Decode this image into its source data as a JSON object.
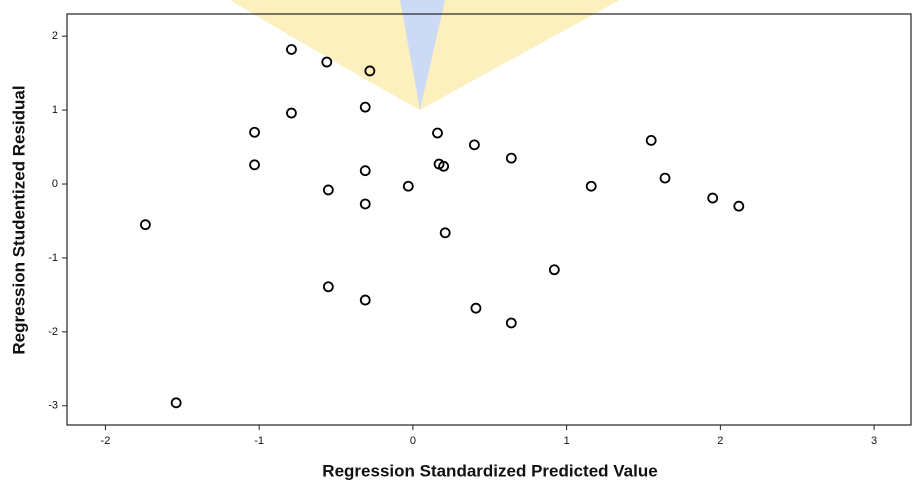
{
  "chart_data": {
    "type": "scatter",
    "xlabel": "Regression Standardized Predicted Value",
    "ylabel": "Regression Studentized Residual",
    "x": [
      -0.79,
      -0.56,
      -0.28,
      -0.31,
      -0.79,
      -1.03,
      0.16,
      0.4,
      0.64,
      1.55,
      -1.03,
      0.17,
      0.2,
      -0.31,
      1.64,
      -0.03,
      1.16,
      -0.55,
      1.95,
      2.12,
      -0.31,
      -1.74,
      0.21,
      0.92,
      -0.55,
      -0.31,
      0.41,
      0.64,
      -1.54
    ],
    "values": [
      1.82,
      1.65,
      1.53,
      1.04,
      0.96,
      0.7,
      0.69,
      0.53,
      0.35,
      0.59,
      0.26,
      0.27,
      0.24,
      0.18,
      0.08,
      -0.03,
      -0.03,
      -0.08,
      -0.19,
      -0.3,
      -0.27,
      -0.55,
      -0.66,
      -1.16,
      -1.39,
      -1.57,
      -1.68,
      -1.88,
      -2.96
    ],
    "color": "#000000",
    "xlim": [
      -2.25,
      3.24
    ],
    "ylim": [
      -3.26,
      2.3
    ],
    "xticks": [
      -2,
      -1,
      0,
      1,
      2,
      3
    ],
    "yticks": [
      2,
      1,
      0,
      -1,
      -2,
      -3
    ]
  }
}
